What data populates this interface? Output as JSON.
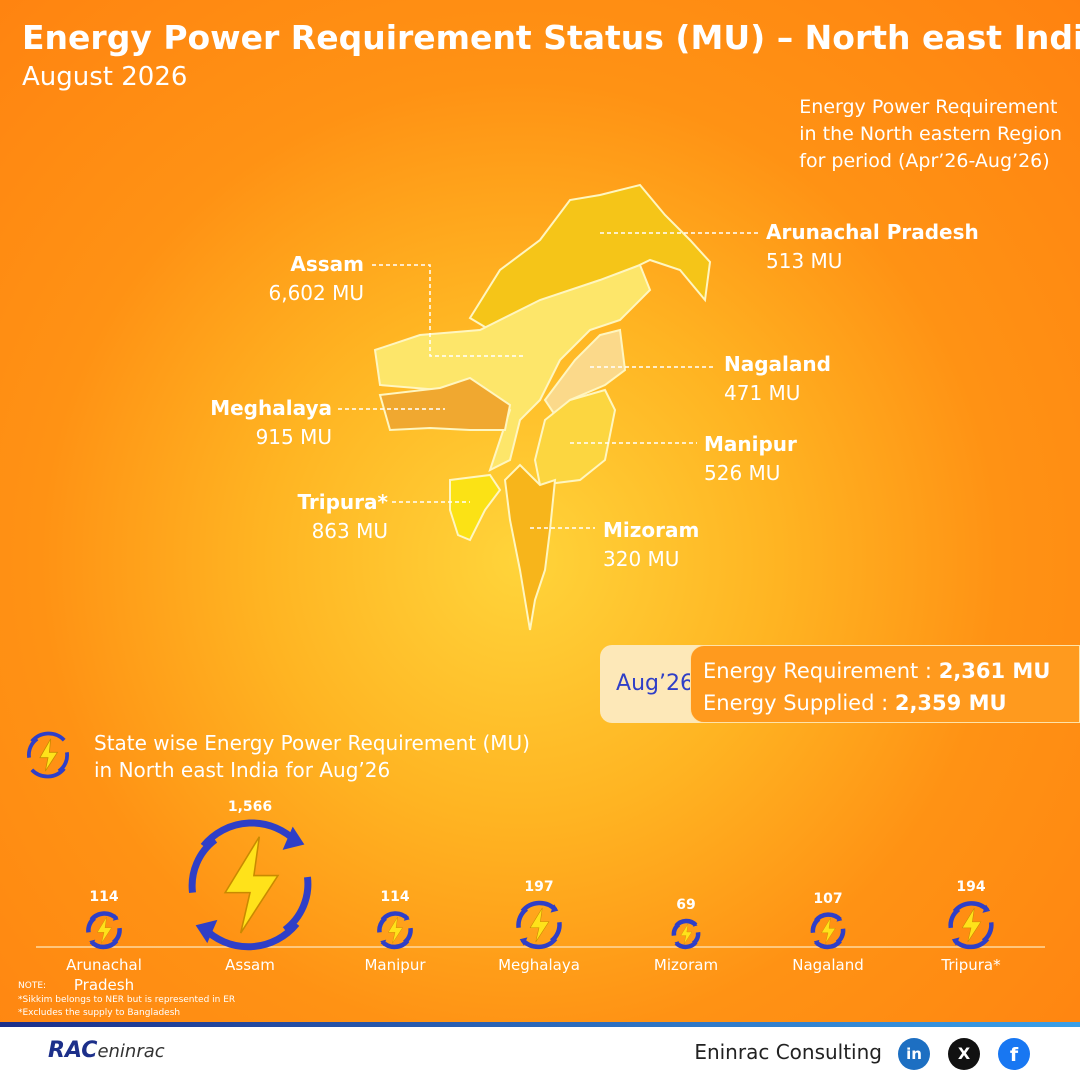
{
  "header": {
    "title": "Energy Power Requirement Status (MU) – North east India",
    "subtitle": "August 2026"
  },
  "map": {
    "caption": [
      "Energy Power Requirement",
      "in the North eastern Region",
      "for period (Apr’26-Aug’26)"
    ],
    "labels": [
      {
        "name": "Arunachal Pradesh",
        "value": "513 MU"
      },
      {
        "name": "Assam",
        "value": "6,602 MU"
      },
      {
        "name": "Nagaland",
        "value": "471 MU"
      },
      {
        "name": "Meghalaya",
        "value": "915 MU"
      },
      {
        "name": "Manipur",
        "value": "526 MU"
      },
      {
        "name": "Tripura*",
        "value": "863 MU"
      },
      {
        "name": "Mizoram",
        "value": "320 MU"
      }
    ]
  },
  "summary": {
    "period": "Aug’26",
    "rows": [
      {
        "label": "Energy Requirement : ",
        "value": "2,361 MU"
      },
      {
        "label": "Energy Supplied : ",
        "value": "2,359 MU"
      }
    ]
  },
  "chart_data": {
    "type": "icon-bubble",
    "title": "State wise Energy Power Requirement (MU)",
    "subtitle": "in North east India for Aug’26",
    "categories": [
      "Arunachal Pradesh",
      "Assam",
      "Manipur",
      "Meghalaya",
      "Mizoram",
      "Nagaland",
      "Tripura*"
    ],
    "values": [
      114,
      1566,
      114,
      197,
      69,
      107,
      194
    ],
    "value_labels": [
      "114",
      "1,566",
      "114",
      "197",
      "69",
      "107",
      "194"
    ],
    "ring_color": "#2f3fc7",
    "bolt_color": "#ffe21a"
  },
  "notes": [
    "NOTE:",
    "*Sikkim belongs to NER but is represented in ER",
    "*Excludes the supply to Bangladesh"
  ],
  "footer": {
    "logo": [
      "RAC",
      "eninrac"
    ],
    "company": "Eninrac Consulting",
    "social": [
      "in",
      "X",
      "f"
    ]
  }
}
